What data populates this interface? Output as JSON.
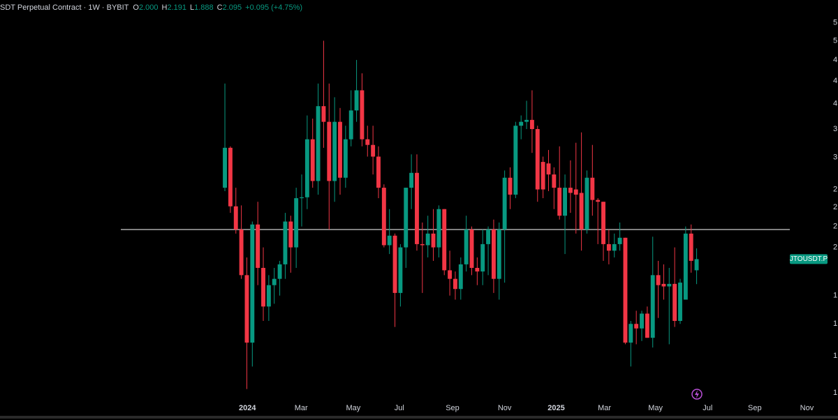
{
  "header": {
    "title": "SDT Perpetual Contract · 1W · BYBIT",
    "ohlc": [
      {
        "key": "O",
        "text": "2.000"
      },
      {
        "key": "H",
        "text": "2.191"
      },
      {
        "key": "L",
        "text": "1.888"
      },
      {
        "key": "C",
        "text": "2.095"
      }
    ],
    "change": "+0.095 (+4.75%)"
  },
  "chart_data": {
    "type": "candlestick",
    "symbol_tag": "JTOUSDT.P",
    "log_scale": true,
    "up_color": "#089981",
    "down_color": "#f23645",
    "hline": 2.37,
    "hline_color": "#ffffff",
    "xlim": [
      -41,
      110.5
    ],
    "xticks": [
      {
        "value": 4.1,
        "label": "2024"
      },
      {
        "value": 13.9,
        "label": "Mar"
      },
      {
        "value": 23.4,
        "label": "May"
      },
      {
        "value": 31.8,
        "label": "Jul"
      },
      {
        "value": 41.5,
        "label": "Sep"
      },
      {
        "value": 51.0,
        "label": "Nov"
      },
      {
        "value": 60.4,
        "label": "2025"
      },
      {
        "value": 69.2,
        "label": "Mar"
      },
      {
        "value": 78.5,
        "label": "May"
      },
      {
        "value": 88.0,
        "label": "Jul"
      },
      {
        "value": 96.6,
        "label": "Sep"
      },
      {
        "value": 106.1,
        "label": "Nov"
      }
    ],
    "ylim": [
      1.16,
      6.16
    ],
    "yticks": [
      {
        "value": 5.6,
        "label": "5"
      },
      {
        "value": 5.2,
        "label": "5"
      },
      {
        "value": 4.8,
        "label": "4"
      },
      {
        "value": 4.4,
        "label": "4"
      },
      {
        "value": 4.0,
        "label": "4"
      },
      {
        "value": 3.6,
        "label": "3"
      },
      {
        "value": 3.2,
        "label": "3"
      },
      {
        "value": 2.8,
        "label": "2"
      },
      {
        "value": 2.6,
        "label": "2"
      },
      {
        "value": 2.4,
        "label": "2"
      },
      {
        "value": 2.2,
        "label": "2"
      },
      {
        "value": 1.8,
        "label": "1"
      },
      {
        "value": 1.6,
        "label": "1"
      },
      {
        "value": 1.4,
        "label": "1"
      },
      {
        "value": 1.2,
        "label": "1"
      }
    ],
    "open": [
      2.82,
      3.33,
      2.61,
      2.37,
      1.96,
      1.48,
      2.42,
      2.02,
      1.72,
      1.88,
      1.93,
      2.05,
      2.45,
      2.2,
      2.7,
      2.71,
      3.45,
      2.9,
      3.96,
      3.71,
      2.9,
      3.71,
      2.94,
      3.45,
      3.89,
      4.23,
      3.45,
      3.37,
      3.21,
      2.82,
      2.22,
      2.31,
      1.82,
      2.2,
      2.82,
      3.0,
      2.23,
      2.22,
      2.33,
      2.2,
      2.58,
      2.0,
      1.93,
      1.85,
      2.05,
      2.37,
      2.02,
      1.99,
      2.23,
      2.37,
      1.93,
      2.37,
      2.94,
      2.74,
      3.65,
      3.71,
      3.74,
      3.6,
      3.14,
      3.12,
      2.98,
      2.82,
      2.51,
      2.82,
      2.8,
      2.76,
      2.37,
      2.94,
      2.68,
      2.66,
      2.23,
      2.17,
      2.23,
      2.29,
      1.48,
      1.6,
      1.57,
      1.67,
      1.51,
      1.96,
      1.89,
      1.87,
      1.89,
      1.62,
      1.77,
      2.33,
      2.0
    ],
    "high": [
      4.35,
      3.35,
      2.82,
      2.62,
      2.11,
      2.45,
      2.66,
      2.2,
      1.96,
      2.02,
      2.08,
      2.54,
      2.51,
      2.82,
      2.98,
      3.81,
      3.76,
      4.35,
      5.2,
      4.35,
      4.11,
      3.93,
      3.65,
      4.23,
      4.8,
      4.54,
      3.65,
      3.65,
      3.35,
      2.86,
      2.58,
      2.33,
      2.23,
      2.82,
      3.24,
      3.24,
      2.44,
      2.51,
      2.58,
      2.62,
      2.58,
      2.17,
      1.99,
      2.11,
      2.51,
      2.4,
      2.11,
      2.37,
      2.4,
      2.47,
      2.44,
      3.03,
      3.07,
      3.71,
      3.81,
      4.05,
      4.23,
      3.65,
      3.21,
      3.3,
      3.07,
      3.35,
      2.98,
      3.16,
      3.4,
      3.55,
      3.03,
      3.37,
      2.7,
      2.66,
      2.37,
      2.33,
      2.44,
      2.29,
      1.62,
      1.69,
      1.69,
      1.72,
      2.3,
      2.08,
      2.05,
      2.02,
      2.2,
      1.93,
      2.4,
      2.42,
      2.191
    ],
    "low": [
      2.78,
      2.54,
      2.33,
      1.93,
      1.22,
      1.34,
      1.88,
      1.62,
      1.62,
      1.74,
      1.8,
      1.93,
      1.98,
      2.02,
      2.4,
      2.58,
      2.82,
      2.74,
      3.33,
      2.37,
      2.66,
      2.74,
      2.82,
      3.35,
      3.71,
      3.35,
      3.21,
      2.98,
      2.7,
      2.2,
      2.14,
      1.58,
      1.72,
      2.02,
      2.58,
      2.17,
      1.82,
      2.11,
      2.08,
      2.11,
      1.96,
      1.8,
      1.77,
      1.77,
      1.99,
      1.96,
      1.88,
      1.88,
      1.96,
      1.82,
      1.77,
      1.9,
      2.58,
      2.7,
      3.45,
      3.6,
      3.26,
      2.66,
      2.7,
      2.78,
      2.58,
      2.47,
      2.14,
      2.54,
      2.33,
      2.17,
      2.33,
      2.51,
      2.23,
      2.08,
      2.05,
      2.11,
      2.17,
      1.47,
      1.34,
      1.47,
      1.49,
      1.51,
      1.45,
      1.64,
      1.77,
      1.47,
      1.58,
      1.6,
      1.77,
      1.98,
      1.888
    ],
    "close": [
      3.33,
      2.61,
      2.37,
      1.96,
      1.48,
      2.42,
      2.02,
      1.72,
      1.88,
      1.93,
      2.05,
      2.45,
      2.2,
      2.7,
      2.71,
      3.45,
      2.9,
      3.96,
      3.71,
      2.9,
      3.71,
      2.94,
      3.45,
      3.89,
      4.23,
      3.45,
      3.37,
      3.21,
      2.82,
      2.22,
      2.31,
      1.82,
      2.2,
      2.82,
      3.0,
      2.23,
      2.22,
      2.33,
      2.2,
      2.58,
      2.0,
      1.93,
      1.85,
      2.05,
      2.37,
      2.02,
      1.99,
      2.23,
      2.37,
      1.93,
      2.37,
      2.94,
      2.74,
      3.65,
      3.71,
      3.74,
      3.6,
      2.8,
      2.8,
      2.98,
      2.82,
      2.51,
      2.82,
      2.76,
      2.74,
      2.37,
      2.94,
      2.68,
      2.66,
      2.23,
      2.17,
      2.23,
      2.29,
      1.48,
      1.6,
      1.57,
      1.67,
      1.51,
      1.96,
      1.88,
      1.87,
      1.89,
      1.62,
      1.9,
      2.33,
      2.08,
      2.095
    ]
  }
}
